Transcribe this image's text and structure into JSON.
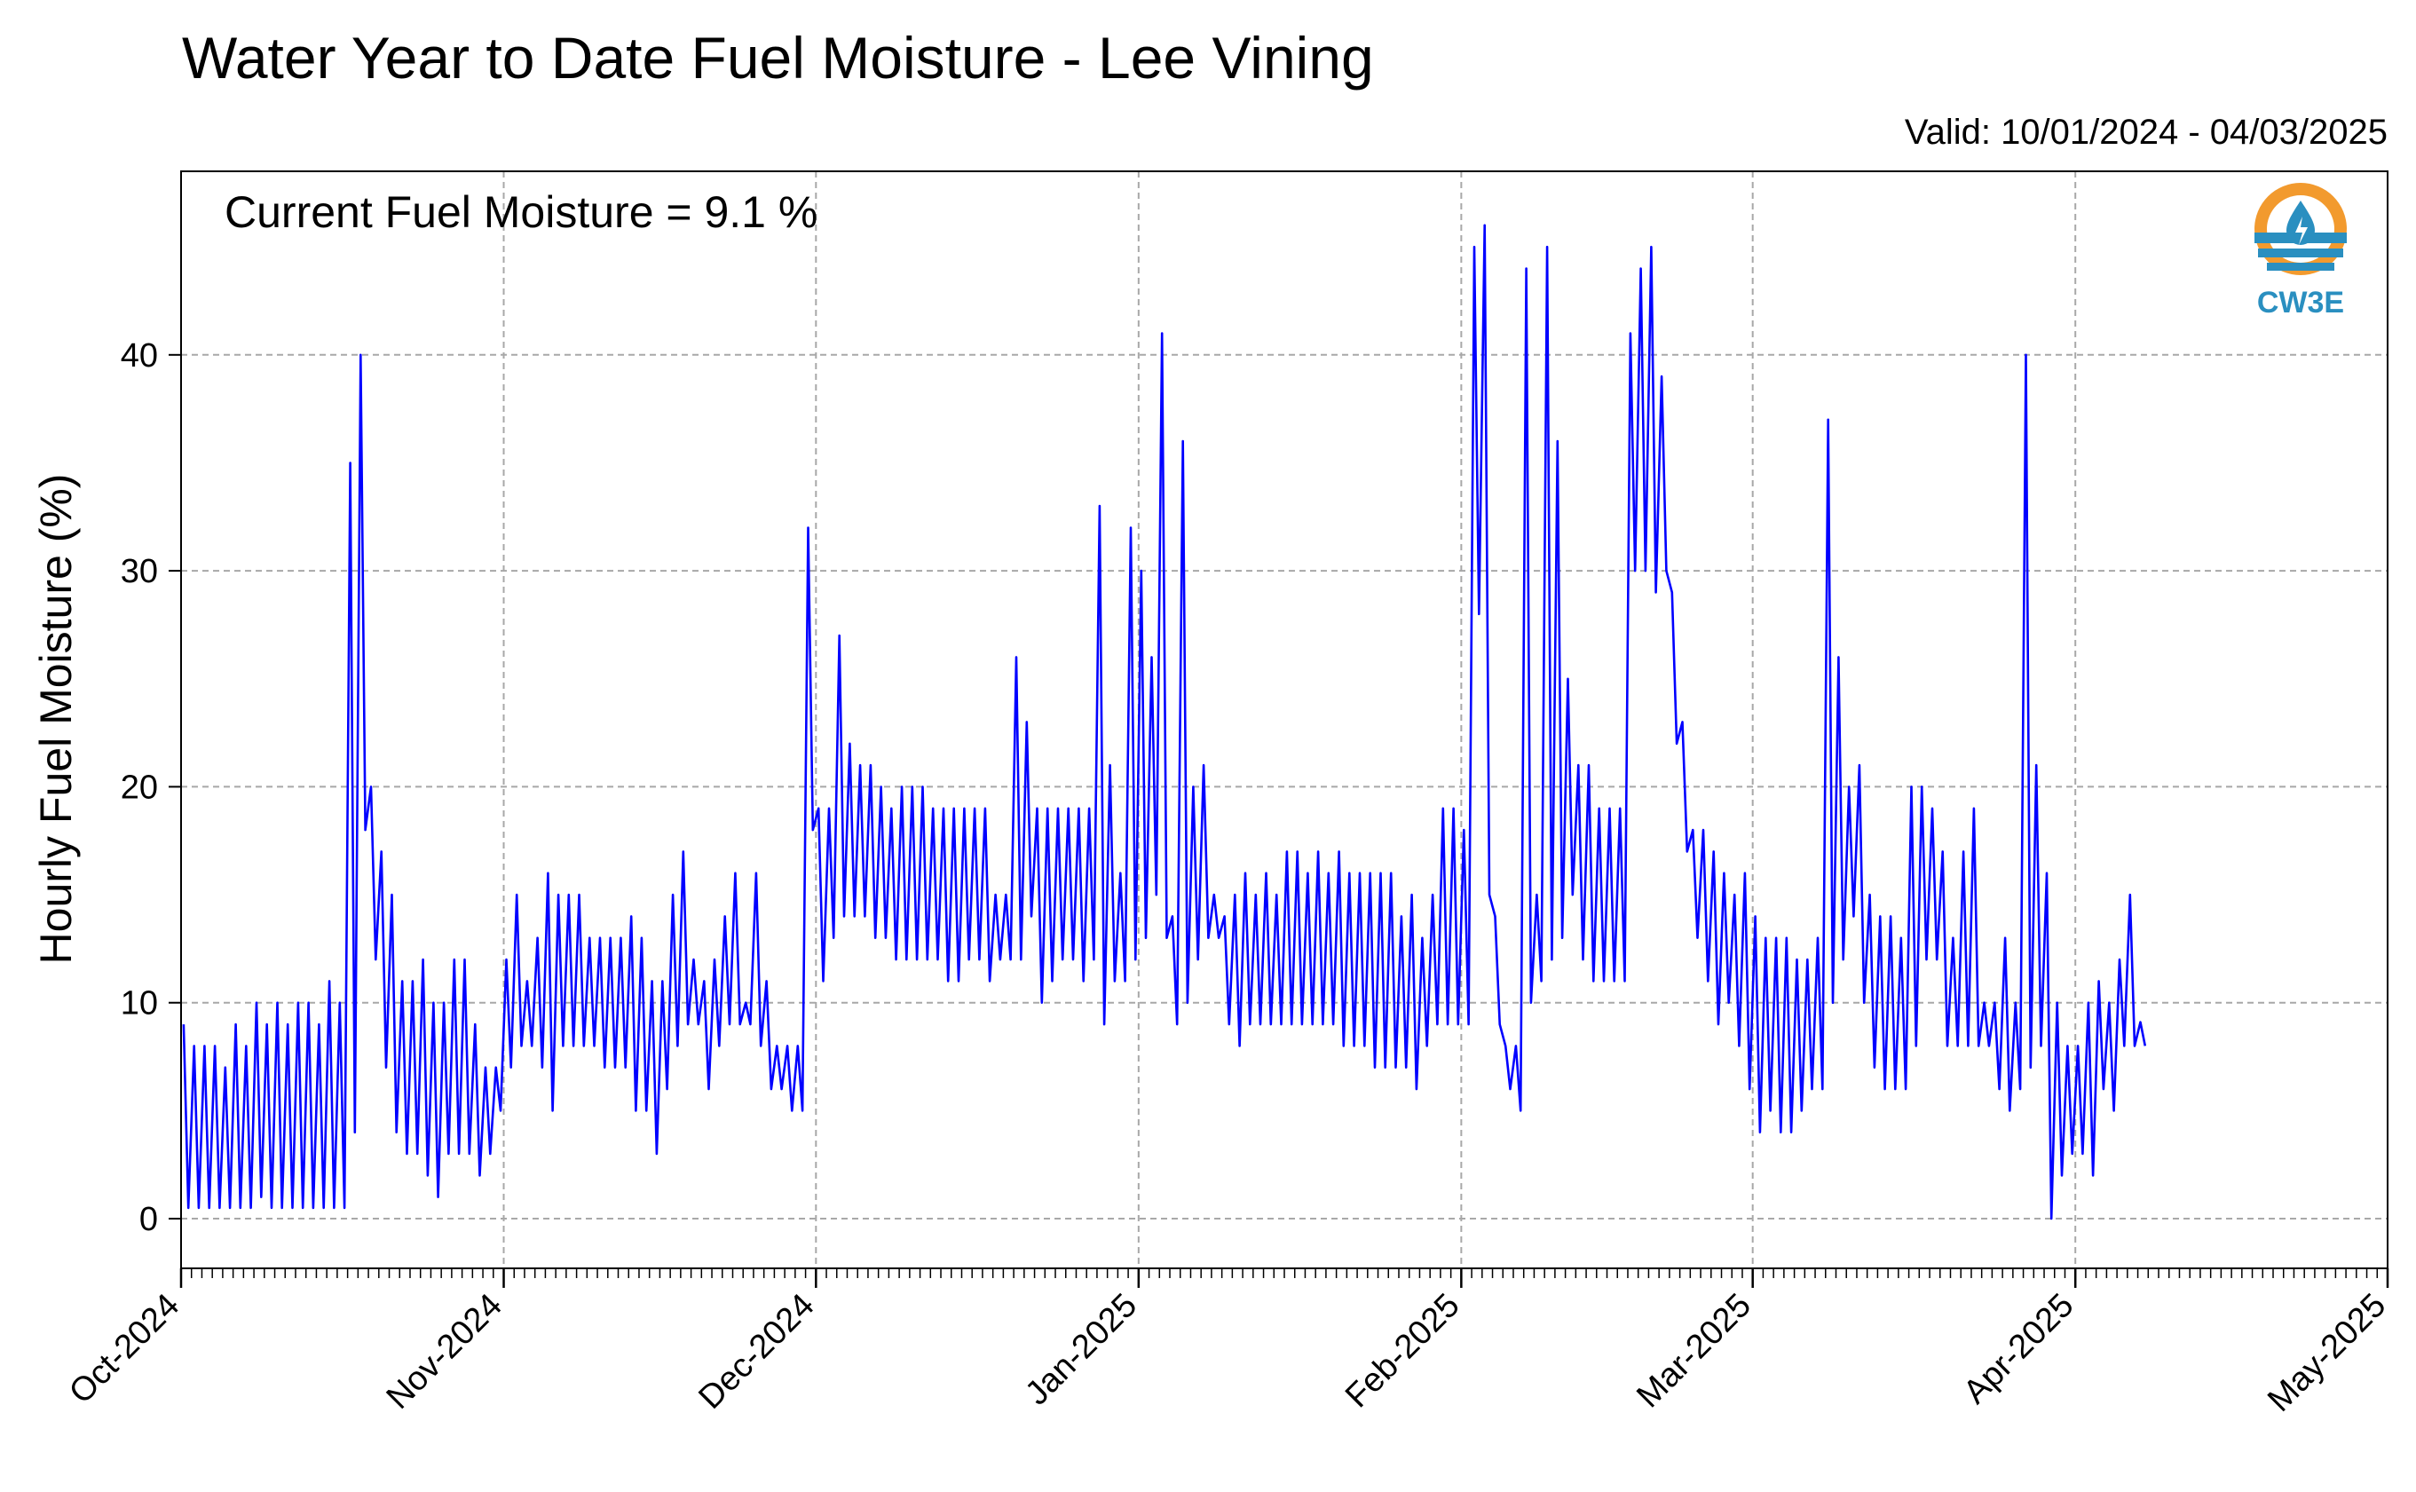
{
  "colors": {
    "line": "#0000ff",
    "grid": "#a8a8a8",
    "logo_orange": "#f29a2e",
    "logo_blue": "#2a8fc0"
  },
  "logo": {
    "icon": "cw3e-logo-icon",
    "text": "CW3E"
  },
  "chart_data": {
    "type": "line",
    "title": "Water Year to Date Fuel Moisture - Lee Vining",
    "subtitle": "Valid: 10/01/2024 - 04/03/2025",
    "annotation": "Current Fuel Moisture = 9.1 %",
    "xlabel": "",
    "ylabel": "Hourly Fuel Moisture (%)",
    "xlim": [
      "2024-10-01",
      "2025-05-01"
    ],
    "ylim": [
      -2.3,
      48.5
    ],
    "yticks": [
      0,
      10,
      20,
      30,
      40
    ],
    "xticks": [
      {
        "date": "2024-10-01",
        "label": "Oct-2024"
      },
      {
        "date": "2024-11-01",
        "label": "Nov-2024"
      },
      {
        "date": "2024-12-01",
        "label": "Dec-2024"
      },
      {
        "date": "2025-01-01",
        "label": "Jan-2025"
      },
      {
        "date": "2025-02-01",
        "label": "Feb-2025"
      },
      {
        "date": "2025-03-01",
        "label": "Mar-2025"
      },
      {
        "date": "2025-04-01",
        "label": "Apr-2025"
      },
      {
        "date": "2025-05-01",
        "label": "May-2025"
      }
    ],
    "minor_ticks": "daily",
    "grid": true,
    "series": [
      {
        "sampling": "daily_min_max",
        "points": [
          [
            "2024-10-01",
            0.5,
            9
          ],
          [
            "2024-10-02",
            0.5,
            8
          ],
          [
            "2024-10-03",
            0.5,
            8
          ],
          [
            "2024-10-04",
            0.5,
            8
          ],
          [
            "2024-10-05",
            0.5,
            7
          ],
          [
            "2024-10-06",
            0.5,
            9
          ],
          [
            "2024-10-07",
            0.5,
            8
          ],
          [
            "2024-10-08",
            1,
            10
          ],
          [
            "2024-10-09",
            0.5,
            9
          ],
          [
            "2024-10-10",
            0.5,
            10
          ],
          [
            "2024-10-11",
            0.5,
            9
          ],
          [
            "2024-10-12",
            0.5,
            10
          ],
          [
            "2024-10-13",
            0.5,
            10
          ],
          [
            "2024-10-14",
            0.5,
            9
          ],
          [
            "2024-10-15",
            0.5,
            11
          ],
          [
            "2024-10-16",
            0.5,
            10
          ],
          [
            "2024-10-17",
            4,
            35
          ],
          [
            "2024-10-18",
            18,
            40
          ],
          [
            "2024-10-19",
            12,
            20
          ],
          [
            "2024-10-20",
            7,
            17
          ],
          [
            "2024-10-21",
            4,
            15
          ],
          [
            "2024-10-22",
            3,
            11
          ],
          [
            "2024-10-23",
            3,
            11
          ],
          [
            "2024-10-24",
            2,
            12
          ],
          [
            "2024-10-25",
            1,
            10
          ],
          [
            "2024-10-26",
            3,
            10
          ],
          [
            "2024-10-27",
            3,
            12
          ],
          [
            "2024-10-28",
            3,
            12
          ],
          [
            "2024-10-29",
            2,
            9
          ],
          [
            "2024-10-30",
            3,
            7
          ],
          [
            "2024-10-31",
            5,
            7
          ],
          [
            "2024-11-01",
            7,
            12
          ],
          [
            "2024-11-02",
            8,
            15
          ],
          [
            "2024-11-03",
            8,
            11
          ],
          [
            "2024-11-04",
            7,
            13
          ],
          [
            "2024-11-05",
            5,
            16
          ],
          [
            "2024-11-06",
            8,
            15
          ],
          [
            "2024-11-07",
            8,
            15
          ],
          [
            "2024-11-08",
            8,
            15
          ],
          [
            "2024-11-09",
            8,
            13
          ],
          [
            "2024-11-10",
            7,
            13
          ],
          [
            "2024-11-11",
            7,
            13
          ],
          [
            "2024-11-12",
            7,
            13
          ],
          [
            "2024-11-13",
            5,
            14
          ],
          [
            "2024-11-14",
            5,
            13
          ],
          [
            "2024-11-15",
            3,
            11
          ],
          [
            "2024-11-16",
            6,
            11
          ],
          [
            "2024-11-17",
            8,
            15
          ],
          [
            "2024-11-18",
            9,
            17
          ],
          [
            "2024-11-19",
            9,
            12
          ],
          [
            "2024-11-20",
            6,
            11
          ],
          [
            "2024-11-21",
            8,
            12
          ],
          [
            "2024-11-22",
            9,
            14
          ],
          [
            "2024-11-23",
            9,
            16
          ],
          [
            "2024-11-24",
            9,
            10
          ],
          [
            "2024-11-25",
            8,
            16
          ],
          [
            "2024-11-26",
            6,
            11
          ],
          [
            "2024-11-27",
            6,
            8
          ],
          [
            "2024-11-28",
            5,
            8
          ],
          [
            "2024-11-29",
            5,
            8
          ],
          [
            "2024-11-30",
            18,
            32
          ],
          [
            "2024-12-01",
            11,
            19
          ],
          [
            "2024-12-02",
            13,
            19
          ],
          [
            "2024-12-03",
            14,
            27
          ],
          [
            "2024-12-04",
            14,
            22
          ],
          [
            "2024-12-05",
            14,
            21
          ],
          [
            "2024-12-06",
            13,
            21
          ],
          [
            "2024-12-07",
            13,
            20
          ],
          [
            "2024-12-08",
            12,
            19
          ],
          [
            "2024-12-09",
            12,
            20
          ],
          [
            "2024-12-10",
            12,
            20
          ],
          [
            "2024-12-11",
            12,
            20
          ],
          [
            "2024-12-12",
            12,
            19
          ],
          [
            "2024-12-13",
            11,
            19
          ],
          [
            "2024-12-14",
            11,
            19
          ],
          [
            "2024-12-15",
            12,
            19
          ],
          [
            "2024-12-16",
            12,
            19
          ],
          [
            "2024-12-17",
            11,
            19
          ],
          [
            "2024-12-18",
            12,
            15
          ],
          [
            "2024-12-19",
            12,
            15
          ],
          [
            "2024-12-20",
            12,
            26
          ],
          [
            "2024-12-21",
            14,
            23
          ],
          [
            "2024-12-22",
            10,
            19
          ],
          [
            "2024-12-23",
            11,
            19
          ],
          [
            "2024-12-24",
            12,
            19
          ],
          [
            "2024-12-25",
            12,
            19
          ],
          [
            "2024-12-26",
            11,
            19
          ],
          [
            "2024-12-27",
            12,
            19
          ],
          [
            "2024-12-28",
            9,
            33
          ],
          [
            "2024-12-29",
            11,
            21
          ],
          [
            "2024-12-30",
            11,
            16
          ],
          [
            "2024-12-31",
            12,
            32
          ],
          [
            "2025-01-01",
            13,
            30
          ],
          [
            "2025-01-02",
            15,
            26
          ],
          [
            "2025-01-03",
            13,
            41
          ],
          [
            "2025-01-04",
            9,
            14
          ],
          [
            "2025-01-05",
            10,
            36
          ],
          [
            "2025-01-06",
            12,
            20
          ],
          [
            "2025-01-07",
            13,
            21
          ],
          [
            "2025-01-08",
            13,
            15
          ],
          [
            "2025-01-09",
            9,
            14
          ],
          [
            "2025-01-10",
            8,
            15
          ],
          [
            "2025-01-11",
            9,
            16
          ],
          [
            "2025-01-12",
            9,
            15
          ],
          [
            "2025-01-13",
            9,
            16
          ],
          [
            "2025-01-14",
            9,
            15
          ],
          [
            "2025-01-15",
            9,
            17
          ],
          [
            "2025-01-16",
            9,
            17
          ],
          [
            "2025-01-17",
            9,
            16
          ],
          [
            "2025-01-18",
            9,
            17
          ],
          [
            "2025-01-19",
            9,
            16
          ],
          [
            "2025-01-20",
            8,
            17
          ],
          [
            "2025-01-21",
            8,
            16
          ],
          [
            "2025-01-22",
            8,
            16
          ],
          [
            "2025-01-23",
            7,
            16
          ],
          [
            "2025-01-24",
            7,
            16
          ],
          [
            "2025-01-25",
            7,
            16
          ],
          [
            "2025-01-26",
            7,
            14
          ],
          [
            "2025-01-27",
            6,
            15
          ],
          [
            "2025-01-28",
            8,
            13
          ],
          [
            "2025-01-29",
            9,
            15
          ],
          [
            "2025-01-30",
            9,
            19
          ],
          [
            "2025-01-31",
            9,
            19
          ],
          [
            "2025-02-01",
            9,
            18
          ],
          [
            "2025-02-02",
            28,
            45
          ],
          [
            "2025-02-03",
            15,
            46
          ],
          [
            "2025-02-04",
            9,
            14
          ],
          [
            "2025-02-05",
            6,
            8
          ],
          [
            "2025-02-06",
            5,
            8
          ],
          [
            "2025-02-07",
            10,
            44
          ],
          [
            "2025-02-08",
            11,
            15
          ],
          [
            "2025-02-09",
            12,
            45
          ],
          [
            "2025-02-10",
            13,
            36
          ],
          [
            "2025-02-11",
            15,
            25
          ],
          [
            "2025-02-12",
            12,
            21
          ],
          [
            "2025-02-13",
            11,
            21
          ],
          [
            "2025-02-14",
            11,
            19
          ],
          [
            "2025-02-15",
            11,
            19
          ],
          [
            "2025-02-16",
            11,
            19
          ],
          [
            "2025-02-17",
            30,
            41
          ],
          [
            "2025-02-18",
            30,
            44
          ],
          [
            "2025-02-19",
            29,
            45
          ],
          [
            "2025-02-20",
            30,
            39
          ],
          [
            "2025-02-21",
            22,
            29
          ],
          [
            "2025-02-22",
            17,
            23
          ],
          [
            "2025-02-23",
            13,
            18
          ],
          [
            "2025-02-24",
            11,
            18
          ],
          [
            "2025-02-25",
            9,
            17
          ],
          [
            "2025-02-26",
            10,
            16
          ],
          [
            "2025-02-27",
            8,
            15
          ],
          [
            "2025-02-28",
            6,
            16
          ],
          [
            "2025-03-01",
            4,
            14
          ],
          [
            "2025-03-02",
            5,
            13
          ],
          [
            "2025-03-03",
            4,
            13
          ],
          [
            "2025-03-04",
            4,
            13
          ],
          [
            "2025-03-05",
            5,
            12
          ],
          [
            "2025-03-06",
            6,
            12
          ],
          [
            "2025-03-07",
            6,
            13
          ],
          [
            "2025-03-08",
            10,
            37
          ],
          [
            "2025-03-09",
            12,
            26
          ],
          [
            "2025-03-10",
            14,
            20
          ],
          [
            "2025-03-11",
            10,
            21
          ],
          [
            "2025-03-12",
            7,
            15
          ],
          [
            "2025-03-13",
            6,
            14
          ],
          [
            "2025-03-14",
            6,
            14
          ],
          [
            "2025-03-15",
            6,
            13
          ],
          [
            "2025-03-16",
            8,
            20
          ],
          [
            "2025-03-17",
            12,
            20
          ],
          [
            "2025-03-18",
            12,
            19
          ],
          [
            "2025-03-19",
            8,
            17
          ],
          [
            "2025-03-20",
            8,
            13
          ],
          [
            "2025-03-21",
            8,
            17
          ],
          [
            "2025-03-22",
            8,
            19
          ],
          [
            "2025-03-23",
            8,
            10
          ],
          [
            "2025-03-24",
            6,
            10
          ],
          [
            "2025-03-25",
            5,
            13
          ],
          [
            "2025-03-26",
            6,
            10
          ],
          [
            "2025-03-27",
            7,
            40
          ],
          [
            "2025-03-28",
            8,
            21
          ],
          [
            "2025-03-29",
            0,
            16
          ],
          [
            "2025-03-30",
            2,
            10
          ],
          [
            "2025-03-31",
            3,
            8
          ],
          [
            "2025-04-01",
            3,
            8
          ],
          [
            "2025-04-02",
            2,
            10
          ],
          [
            "2025-04-03",
            6,
            11
          ],
          [
            "2025-04-04",
            5,
            10
          ],
          [
            "2025-04-05",
            8,
            12
          ],
          [
            "2025-04-06",
            8,
            15
          ],
          [
            "2025-04-07",
            8,
            9.1
          ]
        ]
      }
    ]
  }
}
